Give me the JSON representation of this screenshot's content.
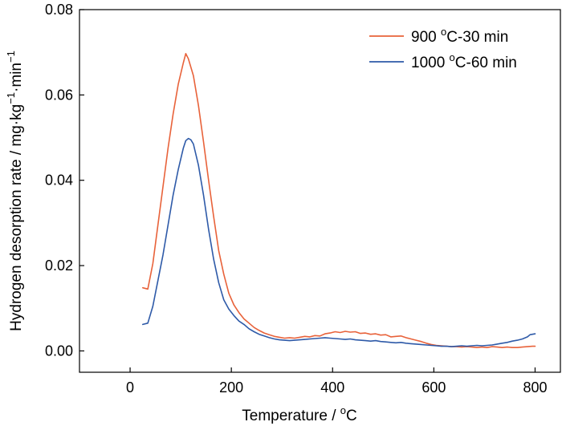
{
  "chart_data": {
    "type": "line",
    "xlabel": "Temperature / ",
    "xlabel_unit": "C",
    "ylabel": "Hydrogen desorption rate / mg·kg",
    "ylabel_exp": "−1",
    "ylabel_tail": "·min",
    "xlim": [
      -100,
      850
    ],
    "ylim": [
      -0.005,
      0.08
    ],
    "xticks": [
      0,
      200,
      400,
      600,
      800
    ],
    "yticks": [
      0.0,
      0.02,
      0.04,
      0.06,
      0.08
    ],
    "xtick_labels": [
      "0",
      "200",
      "400",
      "600",
      "800"
    ],
    "ytick_labels": [
      "0.00",
      "0.02",
      "0.04",
      "0.06",
      "0.08"
    ],
    "grid": false,
    "legend_position": "top-right",
    "series": [
      {
        "name_prefix": "900 ",
        "name_suffix": "C-30 min",
        "color": "#e8623a",
        "x": [
          25,
          35,
          45,
          55,
          65,
          75,
          85,
          95,
          105,
          110,
          115,
          125,
          135,
          145,
          155,
          165,
          175,
          185,
          195,
          205,
          215,
          225,
          235,
          245,
          255,
          265,
          275,
          285,
          295,
          305,
          315,
          325,
          335,
          345,
          355,
          365,
          375,
          385,
          395,
          405,
          415,
          425,
          435,
          445,
          455,
          465,
          475,
          485,
          495,
          505,
          515,
          525,
          535,
          545,
          555,
          565,
          575,
          585,
          595,
          605,
          615,
          625,
          635,
          645,
          655,
          665,
          675,
          685,
          695,
          705,
          715,
          725,
          735,
          745,
          755,
          765,
          775,
          785,
          795,
          800
        ],
        "y": [
          0.0148,
          0.0145,
          0.0205,
          0.0295,
          0.0385,
          0.0475,
          0.0555,
          0.0625,
          0.0675,
          0.0697,
          0.0685,
          0.0645,
          0.0575,
          0.049,
          0.04,
          0.0315,
          0.0235,
          0.018,
          0.0135,
          0.0108,
          0.009,
          0.0075,
          0.0065,
          0.0055,
          0.0048,
          0.0042,
          0.0038,
          0.0034,
          0.0032,
          0.003,
          0.0031,
          0.003,
          0.0032,
          0.0034,
          0.0033,
          0.0036,
          0.0035,
          0.004,
          0.0042,
          0.0045,
          0.0043,
          0.0046,
          0.0044,
          0.0045,
          0.0041,
          0.0042,
          0.0039,
          0.004,
          0.0037,
          0.0038,
          0.0033,
          0.0034,
          0.0035,
          0.0031,
          0.0028,
          0.0025,
          0.0022,
          0.0018,
          0.0015,
          0.0013,
          0.0012,
          0.0011,
          0.001,
          0.001,
          0.0009,
          0.001,
          0.0009,
          0.0008,
          0.0009,
          0.0008,
          0.001,
          0.0009,
          0.0008,
          0.0009,
          0.0008,
          0.0008,
          0.0009,
          0.001,
          0.0011,
          0.0011
        ]
      },
      {
        "name_prefix": "1000 ",
        "name_suffix": "C-60 min",
        "color": "#2e5aa8",
        "x": [
          25,
          35,
          45,
          55,
          65,
          75,
          85,
          95,
          105,
          110,
          115,
          120,
          125,
          135,
          145,
          155,
          165,
          175,
          185,
          195,
          205,
          215,
          225,
          235,
          245,
          255,
          265,
          275,
          285,
          295,
          305,
          315,
          325,
          335,
          345,
          355,
          365,
          375,
          385,
          395,
          405,
          415,
          425,
          435,
          445,
          455,
          465,
          475,
          485,
          495,
          505,
          515,
          525,
          535,
          545,
          555,
          565,
          575,
          585,
          595,
          605,
          615,
          625,
          635,
          645,
          655,
          665,
          675,
          685,
          695,
          705,
          715,
          725,
          735,
          745,
          755,
          765,
          775,
          785,
          790,
          800
        ],
        "y": [
          0.0062,
          0.0065,
          0.0105,
          0.0165,
          0.0225,
          0.0295,
          0.0365,
          0.0425,
          0.0475,
          0.0493,
          0.0498,
          0.0495,
          0.0485,
          0.0435,
          0.0365,
          0.0285,
          0.0215,
          0.016,
          0.012,
          0.0098,
          0.0083,
          0.007,
          0.0062,
          0.0052,
          0.0045,
          0.0039,
          0.0035,
          0.0031,
          0.0028,
          0.0026,
          0.0025,
          0.0024,
          0.0025,
          0.0026,
          0.0027,
          0.0028,
          0.0029,
          0.003,
          0.0031,
          0.003,
          0.0029,
          0.0028,
          0.0027,
          0.0028,
          0.0026,
          0.0025,
          0.0024,
          0.0023,
          0.0024,
          0.0022,
          0.0021,
          0.002,
          0.0019,
          0.002,
          0.0018,
          0.0017,
          0.0016,
          0.0015,
          0.0014,
          0.0013,
          0.0012,
          0.0011,
          0.0011,
          0.001,
          0.0011,
          0.0012,
          0.0011,
          0.0012,
          0.0013,
          0.0012,
          0.0013,
          0.0014,
          0.0016,
          0.0018,
          0.002,
          0.0023,
          0.0025,
          0.0028,
          0.0033,
          0.0038,
          0.004
        ]
      }
    ]
  }
}
